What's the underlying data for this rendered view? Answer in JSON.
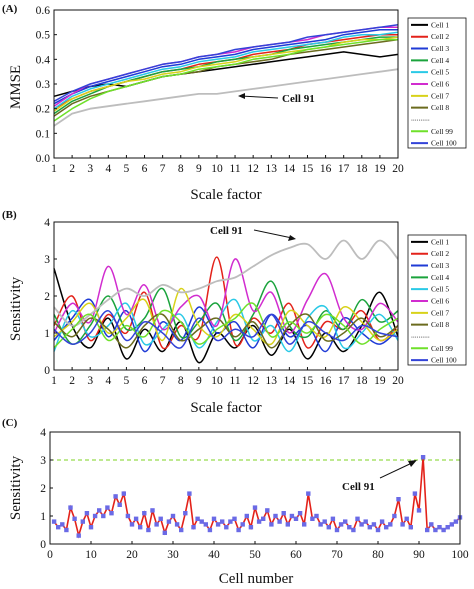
{
  "chart_data": [
    {
      "type": "line",
      "panel_label": "(A)",
      "xlabel": "Scale factor",
      "ylabel": "MMSE",
      "xlim": [
        1,
        20
      ],
      "ylim": [
        0,
        0.6
      ],
      "x_ticks": [
        "1",
        "2",
        "3",
        "4",
        "5",
        "6",
        "7",
        "8",
        "9",
        "10",
        "11",
        "12",
        "13",
        "14",
        "15",
        "16",
        "17",
        "18",
        "19",
        "20"
      ],
      "y_ticks": [
        "0.0",
        "0.1",
        "0.2",
        "0.3",
        "0.4",
        "0.5",
        "0.6"
      ],
      "legend_position": "right",
      "legend": [
        "Cell 1",
        "Cell 2",
        "Cell 3",
        "Cell 4",
        "Cell 5",
        "Cell 6",
        "Cell 7",
        "Cell 8",
        "..........",
        "Cell 99",
        "Cell 100"
      ],
      "annotation": "Cell 91",
      "x": [
        1,
        2,
        3,
        4,
        5,
        6,
        7,
        8,
        9,
        10,
        11,
        12,
        13,
        14,
        15,
        16,
        17,
        18,
        19,
        20
      ],
      "series": [
        {
          "name": "Cell 1",
          "color": "#000000",
          "values": [
            0.25,
            0.27,
            0.29,
            0.3,
            0.29,
            0.31,
            0.33,
            0.34,
            0.35,
            0.36,
            0.37,
            0.38,
            0.39,
            0.4,
            0.41,
            0.42,
            0.43,
            0.42,
            0.41,
            0.42
          ]
        },
        {
          "name": "Cell 2",
          "color": "#e3221a",
          "values": [
            0.2,
            0.24,
            0.27,
            0.29,
            0.31,
            0.33,
            0.35,
            0.36,
            0.38,
            0.39,
            0.4,
            0.42,
            0.43,
            0.44,
            0.46,
            0.47,
            0.48,
            0.49,
            0.5,
            0.5
          ]
        },
        {
          "name": "Cell 3",
          "color": "#1f3bd6",
          "values": [
            0.22,
            0.26,
            0.29,
            0.31,
            0.33,
            0.35,
            0.37,
            0.38,
            0.4,
            0.41,
            0.42,
            0.44,
            0.45,
            0.46,
            0.47,
            0.48,
            0.5,
            0.51,
            0.52,
            0.52
          ]
        },
        {
          "name": "Cell 4",
          "color": "#1aa33c",
          "values": [
            0.18,
            0.23,
            0.26,
            0.29,
            0.31,
            0.33,
            0.35,
            0.36,
            0.37,
            0.39,
            0.4,
            0.41,
            0.42,
            0.44,
            0.45,
            0.46,
            0.47,
            0.48,
            0.49,
            0.49
          ]
        },
        {
          "name": "Cell 5",
          "color": "#2ac9e6",
          "values": [
            0.2,
            0.25,
            0.28,
            0.3,
            0.32,
            0.34,
            0.36,
            0.37,
            0.39,
            0.4,
            0.41,
            0.43,
            0.44,
            0.45,
            0.46,
            0.47,
            0.49,
            0.5,
            0.5,
            0.51
          ]
        },
        {
          "name": "Cell 6",
          "color": "#d12ccf",
          "values": [
            0.21,
            0.26,
            0.3,
            0.32,
            0.34,
            0.36,
            0.38,
            0.39,
            0.41,
            0.42,
            0.43,
            0.45,
            0.46,
            0.47,
            0.48,
            0.5,
            0.51,
            0.52,
            0.53,
            0.53
          ]
        },
        {
          "name": "Cell 7",
          "color": "#d8d21a",
          "values": [
            0.19,
            0.24,
            0.27,
            0.29,
            0.31,
            0.32,
            0.34,
            0.35,
            0.37,
            0.38,
            0.39,
            0.41,
            0.42,
            0.43,
            0.44,
            0.45,
            0.47,
            0.48,
            0.48,
            0.49
          ]
        },
        {
          "name": "Cell 8",
          "color": "#6b6b1e",
          "values": [
            0.17,
            0.22,
            0.25,
            0.27,
            0.29,
            0.31,
            0.33,
            0.34,
            0.35,
            0.37,
            0.38,
            0.39,
            0.4,
            0.42,
            0.43,
            0.44,
            0.45,
            0.46,
            0.47,
            0.48
          ]
        },
        {
          "name": "Cell 91",
          "color": "#bdbdbd",
          "values": [
            0.13,
            0.18,
            0.2,
            0.21,
            0.22,
            0.23,
            0.24,
            0.25,
            0.26,
            0.26,
            0.27,
            0.28,
            0.29,
            0.3,
            0.31,
            0.32,
            0.33,
            0.34,
            0.35,
            0.36
          ]
        },
        {
          "name": "Cell 99",
          "color": "#6fe02a",
          "values": [
            0.15,
            0.2,
            0.24,
            0.27,
            0.29,
            0.31,
            0.33,
            0.34,
            0.36,
            0.37,
            0.38,
            0.4,
            0.41,
            0.42,
            0.44,
            0.45,
            0.46,
            0.47,
            0.48,
            0.48
          ]
        },
        {
          "name": "Cell 100",
          "color": "#3343d8",
          "values": [
            0.23,
            0.27,
            0.3,
            0.32,
            0.34,
            0.36,
            0.38,
            0.39,
            0.41,
            0.42,
            0.44,
            0.45,
            0.46,
            0.47,
            0.49,
            0.5,
            0.51,
            0.52,
            0.53,
            0.54
          ]
        }
      ]
    },
    {
      "type": "line",
      "panel_label": "(B)",
      "xlabel": "Scale factor",
      "ylabel": "Sensitivity",
      "xlim": [
        1,
        20
      ],
      "ylim": [
        0,
        4
      ],
      "x_ticks": [
        "1",
        "2",
        "3",
        "4",
        "5",
        "6",
        "7",
        "8",
        "9",
        "10",
        "11",
        "12",
        "13",
        "14",
        "15",
        "16",
        "17",
        "18",
        "19",
        "20"
      ],
      "y_ticks": [
        "0",
        "1",
        "2",
        "3",
        "4"
      ],
      "legend_position": "right",
      "legend": [
        "Cell 1",
        "Cell 2",
        "Cell 3",
        "Cell 4",
        "Cell 5",
        "Cell 6",
        "Cell 7",
        "Cell 8",
        "..........",
        "Cell 99",
        "Cell 100"
      ],
      "annotation": "Cell 91",
      "x": [
        1,
        2,
        3,
        4,
        5,
        6,
        7,
        8,
        9,
        10,
        11,
        12,
        13,
        14,
        15,
        16,
        17,
        18,
        19,
        20
      ],
      "series": [
        {
          "name": "Cell 1",
          "color": "#000000",
          "values": [
            2.75,
            1.2,
            0.6,
            1.4,
            0.3,
            1.1,
            0.5,
            1.3,
            0.2,
            1.0,
            0.6,
            1.2,
            0.4,
            1.1,
            0.3,
            1.0,
            0.5,
            1.2,
            2.1,
            0.9
          ]
        },
        {
          "name": "Cell 2",
          "color": "#e3221a",
          "values": [
            1.2,
            2.0,
            0.8,
            1.5,
            1.0,
            2.1,
            0.6,
            1.2,
            0.9,
            3.05,
            0.7,
            1.4,
            1.0,
            1.8,
            0.6,
            1.3,
            1.1,
            1.6,
            0.8,
            1.2
          ]
        },
        {
          "name": "Cell 3",
          "color": "#1f3bd6",
          "values": [
            0.8,
            1.4,
            1.9,
            0.9,
            1.6,
            0.5,
            1.3,
            0.8,
            1.7,
            1.0,
            1.3,
            0.6,
            1.5,
            0.9,
            1.2,
            0.5,
            1.4,
            1.0,
            0.7,
            1.1
          ]
        },
        {
          "name": "Cell 4",
          "color": "#1aa33c",
          "values": [
            1.5,
            0.7,
            1.2,
            2.0,
            1.1,
            1.4,
            2.2,
            0.9,
            1.3,
            1.8,
            0.8,
            1.5,
            2.4,
            1.2,
            0.9,
            1.6,
            1.1,
            1.9,
            1.3,
            1.6
          ]
        },
        {
          "name": "Cell 5",
          "color": "#2ac9e6",
          "values": [
            0.5,
            1.6,
            0.9,
            1.2,
            1.8,
            0.7,
            1.1,
            1.5,
            0.6,
            1.3,
            1.9,
            0.8,
            1.2,
            0.5,
            1.4,
            1.7,
            0.6,
            1.0,
            1.5,
            0.8
          ]
        },
        {
          "name": "Cell 6",
          "color": "#d12ccf",
          "values": [
            1.0,
            1.8,
            1.3,
            2.8,
            1.5,
            2.3,
            1.1,
            1.7,
            2.0,
            1.2,
            3.0,
            1.6,
            2.1,
            1.0,
            1.9,
            2.6,
            1.4,
            1.1,
            1.8,
            1.3
          ]
        },
        {
          "name": "Cell 7",
          "color": "#d8d21a",
          "values": [
            0.9,
            1.3,
            1.8,
            1.0,
            1.4,
            1.9,
            0.8,
            2.2,
            1.2,
            0.9,
            1.5,
            1.1,
            0.7,
            1.6,
            1.2,
            0.9,
            1.7,
            1.3,
            0.8,
            1.1
          ]
        },
        {
          "name": "Cell 8",
          "color": "#6b6b1e",
          "values": [
            1.3,
            0.9,
            1.4,
            1.1,
            0.6,
            1.2,
            1.5,
            0.8,
            1.1,
            1.4,
            0.9,
            1.3,
            0.6,
            1.2,
            1.5,
            0.8,
            1.0,
            1.4,
            0.9,
            1.2
          ]
        },
        {
          "name": "Cell 91",
          "color": "#bdbdbd",
          "values": [
            1.7,
            1.2,
            1.5,
            1.9,
            2.2,
            2.0,
            2.3,
            2.1,
            2.2,
            2.4,
            2.5,
            2.8,
            3.1,
            3.3,
            3.4,
            3.0,
            3.5,
            3.0,
            3.5,
            3.0
          ]
        },
        {
          "name": "Cell 99",
          "color": "#6fe02a",
          "values": [
            0.6,
            1.1,
            1.5,
            0.8,
            1.2,
            0.9,
            1.6,
            1.3,
            0.7,
            1.1,
            1.4,
            1.8,
            0.9,
            1.3,
            1.0,
            1.5,
            1.2,
            0.7,
            1.1,
            1.4
          ]
        },
        {
          "name": "Cell 100",
          "color": "#3343d8",
          "values": [
            1.1,
            0.7,
            1.0,
            1.6,
            0.8,
            1.3,
            1.0,
            0.6,
            1.4,
            0.8,
            1.1,
            0.9,
            1.5,
            0.7,
            1.3,
            1.0,
            0.8,
            1.2,
            1.0,
            0.9
          ]
        }
      ]
    },
    {
      "type": "line",
      "panel_label": "(C)",
      "xlabel": "Cell number",
      "ylabel": "Sensitivity",
      "xlim": [
        0,
        100
      ],
      "ylim": [
        0,
        4
      ],
      "x_ticks": [
        "0",
        "10",
        "20",
        "30",
        "40",
        "50",
        "60",
        "70",
        "80",
        "90",
        "100"
      ],
      "y_ticks": [
        "0",
        "1",
        "2",
        "3",
        "4"
      ],
      "reference_line": {
        "y": 3,
        "color": "#7ed321",
        "style": "dashed"
      },
      "annotation": "Cell 91",
      "annotation_x": 91,
      "line_color": "#e3221a",
      "marker_color": "#6a6ae6",
      "x": [
        1,
        2,
        3,
        4,
        5,
        6,
        7,
        8,
        9,
        10,
        11,
        12,
        13,
        14,
        15,
        16,
        17,
        18,
        19,
        20,
        21,
        22,
        23,
        24,
        25,
        26,
        27,
        28,
        29,
        30,
        31,
        32,
        33,
        34,
        35,
        36,
        37,
        38,
        39,
        40,
        41,
        42,
        43,
        44,
        45,
        46,
        47,
        48,
        49,
        50,
        51,
        52,
        53,
        54,
        55,
        56,
        57,
        58,
        59,
        60,
        61,
        62,
        63,
        64,
        65,
        66,
        67,
        68,
        69,
        70,
        71,
        72,
        73,
        74,
        75,
        76,
        77,
        78,
        79,
        80,
        81,
        82,
        83,
        84,
        85,
        86,
        87,
        88,
        89,
        90,
        91,
        92,
        93,
        94,
        95,
        96,
        97,
        98,
        99,
        100
      ],
      "values": [
        0.8,
        0.6,
        0.7,
        0.5,
        1.3,
        0.9,
        0.3,
        0.8,
        1.1,
        0.6,
        1.0,
        1.2,
        1.0,
        1.3,
        1.1,
        1.7,
        1.4,
        1.8,
        1.0,
        0.7,
        0.9,
        0.6,
        1.1,
        0.5,
        1.2,
        0.7,
        0.9,
        0.4,
        0.8,
        1.0,
        0.7,
        0.5,
        1.1,
        1.8,
        0.6,
        0.9,
        0.8,
        0.7,
        0.5,
        0.9,
        0.7,
        0.8,
        0.6,
        0.8,
        0.9,
        0.5,
        0.7,
        1.0,
        0.6,
        1.3,
        0.8,
        0.9,
        1.2,
        0.7,
        1.0,
        0.8,
        1.1,
        0.7,
        1.0,
        0.9,
        1.1,
        0.7,
        1.8,
        0.9,
        1.0,
        0.7,
        0.8,
        0.6,
        0.9,
        0.5,
        0.7,
        0.8,
        0.6,
        0.5,
        0.9,
        0.7,
        0.8,
        0.6,
        0.7,
        0.5,
        0.8,
        0.6,
        0.7,
        1.0,
        1.6,
        0.7,
        0.9,
        0.6,
        1.8,
        1.2,
        3.1,
        0.5,
        0.7,
        0.5,
        0.6,
        0.5,
        0.6,
        0.7,
        0.8,
        0.95
      ]
    }
  ]
}
